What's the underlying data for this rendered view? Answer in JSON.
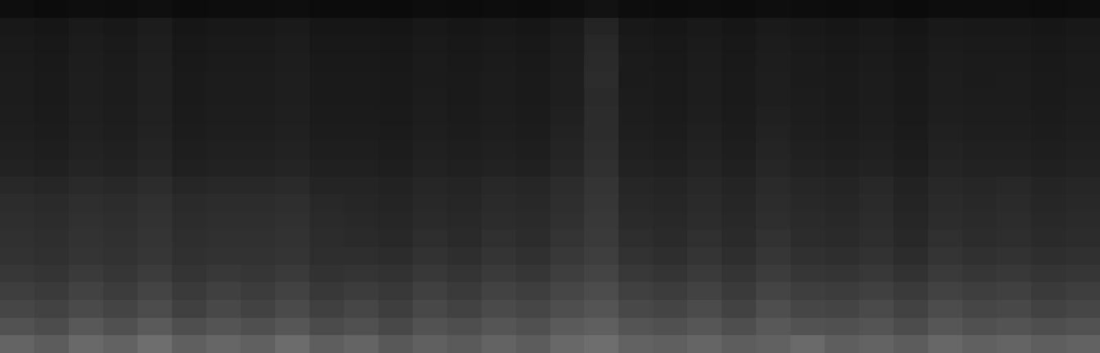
{
  "chart_data": {
    "type": "heatmap",
    "tick_labels": false,
    "zlim": [
      0,
      255
    ],
    "cells": [
      [
        100,
        92,
        105,
        98,
        110,
        95,
        102,
        96,
        108,
        94,
        100,
        88,
        96,
        90,
        99,
        92,
        104,
        110,
        98,
        95,
        101,
        93,
        97,
        106,
        94,
        99,
        92,
        103,
        96,
        100,
        94,
        98
      ],
      [
        82,
        76,
        88,
        80,
        90,
        78,
        84,
        79,
        86,
        75,
        80,
        72,
        82,
        78,
        85,
        80,
        90,
        95,
        84,
        80,
        86,
        78,
        88,
        82,
        80,
        84,
        76,
        86,
        80,
        83,
        78,
        82
      ],
      [
        70,
        66,
        74,
        68,
        76,
        64,
        72,
        66,
        74,
        64,
        70,
        62,
        72,
        66,
        74,
        70,
        78,
        84,
        72,
        68,
        75,
        66,
        78,
        70,
        68,
        74,
        66,
        76,
        70,
        72,
        66,
        70
      ],
      [
        62,
        58,
        66,
        60,
        68,
        58,
        64,
        60,
        66,
        56,
        60,
        56,
        64,
        58,
        66,
        62,
        70,
        76,
        64,
        60,
        66,
        58,
        68,
        62,
        60,
        64,
        58,
        66,
        62,
        64,
        58,
        62
      ],
      [
        55,
        52,
        58,
        54,
        60,
        52,
        56,
        54,
        58,
        50,
        52,
        50,
        56,
        52,
        58,
        54,
        62,
        68,
        56,
        52,
        58,
        52,
        60,
        54,
        52,
        56,
        50,
        58,
        54,
        56,
        52,
        54
      ],
      [
        50,
        48,
        52,
        50,
        54,
        48,
        50,
        50,
        52,
        46,
        46,
        44,
        50,
        46,
        52,
        48,
        56,
        62,
        50,
        46,
        52,
        46,
        54,
        48,
        46,
        50,
        44,
        52,
        48,
        50,
        46,
        48
      ],
      [
        48,
        46,
        50,
        48,
        52,
        46,
        48,
        48,
        50,
        44,
        42,
        40,
        46,
        42,
        48,
        44,
        52,
        58,
        46,
        42,
        48,
        42,
        50,
        44,
        42,
        46,
        40,
        48,
        44,
        46,
        42,
        44
      ],
      [
        46,
        44,
        48,
        46,
        50,
        44,
        46,
        46,
        48,
        42,
        40,
        38,
        42,
        40,
        44,
        42,
        48,
        56,
        42,
        40,
        44,
        40,
        46,
        42,
        40,
        44,
        38,
        44,
        42,
        44,
        40,
        42
      ],
      [
        44,
        42,
        46,
        44,
        48,
        42,
        44,
        44,
        46,
        40,
        38,
        36,
        40,
        38,
        42,
        40,
        46,
        54,
        40,
        38,
        42,
        38,
        44,
        40,
        38,
        42,
        36,
        42,
        40,
        42,
        38,
        40
      ],
      [
        40,
        38,
        42,
        40,
        44,
        38,
        40,
        40,
        42,
        36,
        36,
        34,
        38,
        36,
        40,
        38,
        44,
        52,
        38,
        36,
        40,
        36,
        42,
        38,
        36,
        40,
        34,
        40,
        38,
        40,
        36,
        38
      ],
      [
        34,
        32,
        36,
        34,
        38,
        32,
        34,
        34,
        36,
        32,
        32,
        30,
        34,
        32,
        34,
        32,
        38,
        48,
        34,
        32,
        36,
        32,
        38,
        34,
        32,
        34,
        30,
        36,
        34,
        34,
        32,
        34
      ],
      [
        32,
        30,
        34,
        32,
        36,
        30,
        32,
        32,
        34,
        30,
        30,
        28,
        32,
        30,
        32,
        30,
        36,
        46,
        32,
        30,
        34,
        30,
        36,
        32,
        30,
        32,
        28,
        34,
        32,
        32,
        30,
        32
      ],
      [
        30,
        28,
        32,
        30,
        34,
        28,
        30,
        30,
        32,
        28,
        28,
        27,
        30,
        28,
        30,
        28,
        34,
        44,
        30,
        28,
        32,
        28,
        34,
        30,
        28,
        30,
        27,
        32,
        30,
        30,
        28,
        30
      ],
      [
        29,
        27,
        31,
        29,
        33,
        27,
        29,
        29,
        31,
        27,
        27,
        26,
        29,
        27,
        29,
        27,
        32,
        44,
        29,
        27,
        30,
        27,
        32,
        29,
        27,
        29,
        26,
        30,
        29,
        29,
        27,
        29
      ],
      [
        28,
        26,
        30,
        28,
        32,
        26,
        28,
        28,
        30,
        26,
        26,
        25,
        28,
        26,
        28,
        26,
        30,
        42,
        28,
        26,
        29,
        26,
        30,
        28,
        26,
        28,
        25,
        29,
        28,
        28,
        26,
        28
      ],
      [
        28,
        26,
        30,
        28,
        32,
        26,
        28,
        28,
        30,
        26,
        26,
        25,
        27,
        26,
        28,
        26,
        30,
        44,
        27,
        26,
        29,
        26,
        30,
        27,
        26,
        28,
        25,
        29,
        27,
        28,
        26,
        27
      ],
      [
        27,
        25,
        29,
        27,
        31,
        25,
        27,
        27,
        29,
        25,
        25,
        24,
        27,
        25,
        27,
        25,
        29,
        42,
        27,
        25,
        28,
        25,
        29,
        27,
        25,
        27,
        24,
        28,
        27,
        27,
        25,
        27
      ],
      [
        26,
        24,
        28,
        26,
        30,
        24,
        26,
        26,
        28,
        24,
        24,
        23,
        26,
        24,
        26,
        24,
        28,
        40,
        26,
        24,
        27,
        24,
        28,
        26,
        24,
        26,
        23,
        27,
        26,
        26,
        24,
        26
      ],
      [
        24,
        22,
        26,
        24,
        28,
        22,
        24,
        24,
        26,
        22,
        22,
        21,
        24,
        22,
        24,
        22,
        26,
        36,
        24,
        22,
        25,
        22,
        26,
        24,
        22,
        24,
        21,
        25,
        24,
        24,
        22,
        24
      ],
      [
        14,
        12,
        14,
        13,
        15,
        12,
        13,
        13,
        14,
        12,
        12,
        11,
        13,
        12,
        13,
        12,
        14,
        18,
        13,
        12,
        13,
        12,
        14,
        13,
        12,
        13,
        11,
        13,
        13,
        13,
        12,
        13
      ]
    ]
  }
}
